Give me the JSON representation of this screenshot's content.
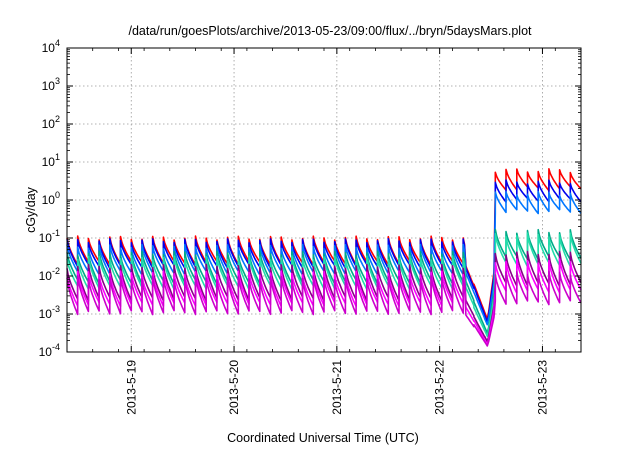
{
  "chart_data": {
    "type": "line",
    "title": "/data/run/goesPlots/archive/2013-05-23/09:00/flux/../bryn/5daysMars.plot",
    "xlabel": "Coordinated Universal Time (UTC)",
    "ylabel": "cGy/day",
    "yscale": "log",
    "ylim": [
      0.0001,
      10000
    ],
    "y_ticks": [
      {
        "base": "10",
        "exp": "-4",
        "value": 0.0001
      },
      {
        "base": "10",
        "exp": "-3",
        "value": 0.001
      },
      {
        "base": "10",
        "exp": "-2",
        "value": 0.01
      },
      {
        "base": "10",
        "exp": "-1",
        "value": 0.1
      },
      {
        "base": "10",
        "exp": "0",
        "value": 1
      },
      {
        "base": "10",
        "exp": "1",
        "value": 10
      },
      {
        "base": "10",
        "exp": "2",
        "value": 100
      },
      {
        "base": "10",
        "exp": "3",
        "value": 1000
      },
      {
        "base": "10",
        "exp": "4",
        "value": 10000
      }
    ],
    "xlim": [
      "2013-05-18 09:00",
      "2013-05-23 09:00"
    ],
    "x_ticks": [
      {
        "label": "2013-5-19",
        "date": "2013-05-19 00:00"
      },
      {
        "label": "2013-5-20",
        "date": "2013-05-20 00:00"
      },
      {
        "label": "2013-5-21",
        "date": "2013-05-21 00:00"
      },
      {
        "label": "2013-5-22",
        "date": "2013-05-22 00:00"
      },
      {
        "label": "2013-5-23",
        "date": "2013-05-23 00:00"
      }
    ],
    "grid": true,
    "legend": "none",
    "sawtooth_period_hours": 2.5,
    "event_onset": "2013-05-22 13:00",
    "series": [
      {
        "color": "#ff0000",
        "peak_before": 0.1,
        "trough_before": 0.022,
        "dip_min": 0.0007,
        "peak_after": 6.0,
        "trough_after": 2.0
      },
      {
        "color": "#0000ee",
        "peak_before": 0.085,
        "trough_before": 0.018,
        "dip_min": 0.0006,
        "peak_after": 3.0,
        "trough_after": 1.0
      },
      {
        "color": "#0077ff",
        "peak_before": 0.06,
        "trough_before": 0.012,
        "dip_min": 0.0005,
        "peak_after": 1.5,
        "trough_after": 0.5
      },
      {
        "color": "#00aa88",
        "peak_before": 0.04,
        "trough_before": 0.007,
        "dip_min": 0.0003,
        "peak_after": 0.15,
        "trough_after": 0.03
      },
      {
        "color": "#22ddaa",
        "peak_before": 0.03,
        "trough_before": 0.005,
        "dip_min": 0.00025,
        "peak_after": 0.12,
        "trough_after": 0.02
      },
      {
        "color": "#880088",
        "peak_before": 0.018,
        "trough_before": 0.0025,
        "dip_min": 0.00018,
        "peak_after": 0.04,
        "trough_after": 0.006
      },
      {
        "color": "#ff00ff",
        "peak_before": 0.012,
        "trough_before": 0.0018,
        "dip_min": 0.00015,
        "peak_after": 0.025,
        "trough_after": 0.004
      },
      {
        "color": "#cc00cc",
        "peak_before": 0.009,
        "trough_before": 0.0011,
        "dip_min": 0.00014,
        "peak_after": 0.012,
        "trough_after": 0.002
      }
    ]
  }
}
